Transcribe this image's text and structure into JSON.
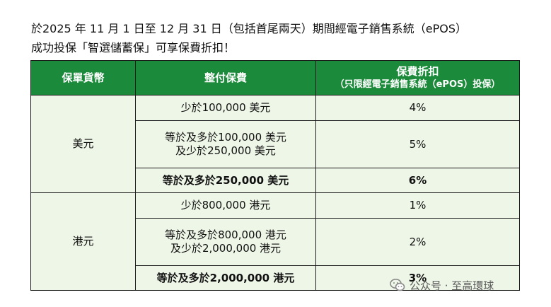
{
  "intro": {
    "line1": "於2025 年 11 月 1 日至 12 月 31 日（包括首尾兩天）期間經電子銷售系統（ePOS）",
    "line2": "成功投保「智選儲蓄保」可享保費折扣！"
  },
  "table": {
    "headers": {
      "currency": "保單貨幣",
      "premium": "整付保費",
      "discount": "保費折扣",
      "discount_note": "（只限經電子銷售系統（ePOS）投保）"
    },
    "groups": [
      {
        "currency": "美元",
        "rows": [
          {
            "premium_l1": "少於100,000 美元",
            "premium_l2": "",
            "discount": "4%"
          },
          {
            "premium_l1": "等於及多於100,000 美元",
            "premium_l2": "及少於250,000 美元",
            "discount": "5%"
          },
          {
            "premium_l1": "等於及多於250,000 美元",
            "premium_l2": "",
            "discount": "6%"
          }
        ]
      },
      {
        "currency": "港元",
        "rows": [
          {
            "premium_l1": "少於800,000 港元",
            "premium_l2": "",
            "discount": "1%"
          },
          {
            "premium_l1": "等於及多於800,000 港元",
            "premium_l2": "及少於2,000,000 港元",
            "discount": "2%"
          },
          {
            "premium_l1": "等於及多於2,000,000 港元",
            "premium_l2": "",
            "discount": "3%"
          }
        ]
      }
    ]
  },
  "watermark": {
    "text": "公众号 · 至高環球",
    "icon": "wechat-icon"
  },
  "colors": {
    "header_green": "#1b8a3a",
    "body_tint": "#eef6e7"
  }
}
